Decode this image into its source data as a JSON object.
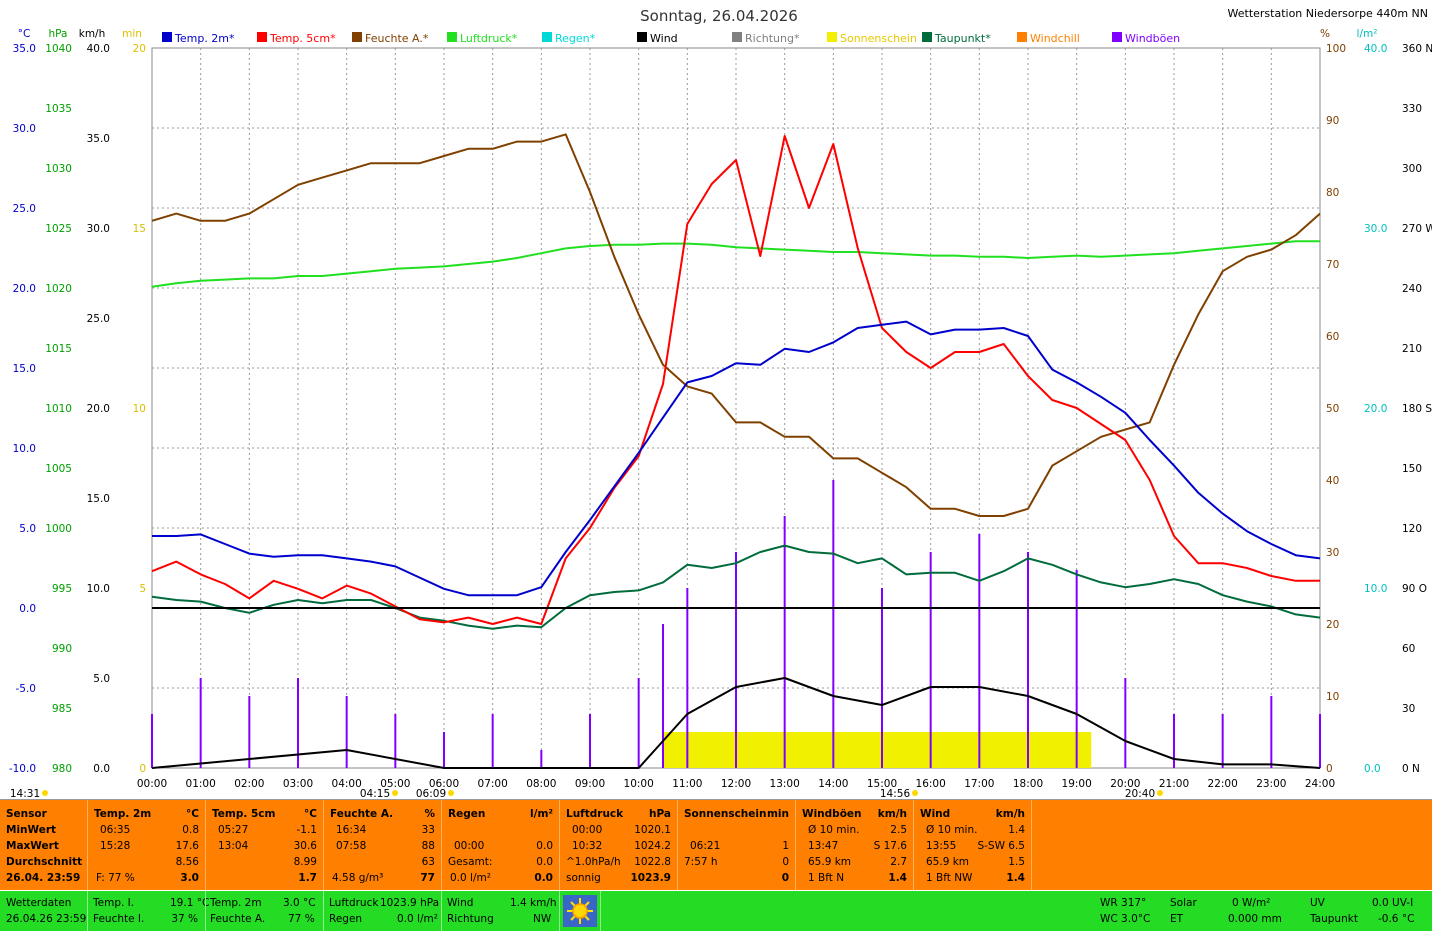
{
  "header": {
    "title": "Sonntag, 26.04.2026",
    "station": "Wetterstation Niedersorpe 440m NN"
  },
  "legend": [
    {
      "label": "Temp. 2m*",
      "color": "#0000cc"
    },
    {
      "label": "Temp. 5cm*",
      "color": "#ff0000"
    },
    {
      "label": "Feuchte A.*",
      "color": "#804000"
    },
    {
      "label": "Luftdruck*",
      "color": "#20e020"
    },
    {
      "label": "Regen*",
      "color": "#00d8d8"
    },
    {
      "label": "Wind",
      "color": "#000000"
    },
    {
      "label": "Richtung*",
      "color": "#808080"
    },
    {
      "label": "Sonnenschein",
      "color": "#f0f000"
    },
    {
      "label": "Taupunkt*",
      "color": "#006c3c"
    },
    {
      "label": "Windchill",
      "color": "#ff8000"
    },
    {
      "label": "Windböen",
      "color": "#8000ff"
    }
  ],
  "axis_units": {
    "temp": "°C",
    "pressure": "hPa",
    "wind": "km/h",
    "sun": "min",
    "humidity": "%",
    "rain": "l/m²"
  },
  "axis_ticks": {
    "temp": [
      "35.0",
      "30.0",
      "25.0",
      "20.0",
      "15.0",
      "10.0",
      "5.0",
      "0.0",
      "-5.0",
      "-10.0"
    ],
    "pressure": [
      "1040",
      "1035",
      "1030",
      "1025",
      "1020",
      "1015",
      "1010",
      "1005",
      "1000",
      "995",
      "990",
      "985",
      "980"
    ],
    "wind": [
      "40.0",
      "35.0",
      "30.0",
      "25.0",
      "20.0",
      "15.0",
      "10.0",
      "5.0",
      "0.0"
    ],
    "sun": [
      "20",
      "15",
      "10",
      "5",
      "0"
    ],
    "humidity": [
      "100",
      "90",
      "80",
      "70",
      "60",
      "50",
      "40",
      "30",
      "20",
      "10",
      "0"
    ],
    "rain": [
      "40.0",
      "30.0",
      "20.0",
      "10.0",
      "0.0"
    ],
    "direction": [
      "360 N",
      "330",
      "300",
      "270 W",
      "240",
      "210",
      "180 S",
      "150",
      "120",
      "90 O",
      "60",
      "30",
      "0 N"
    ]
  },
  "time_labels": [
    "00:00",
    "01:00",
    "02:00",
    "03:00",
    "04:00",
    "05:00",
    "06:00",
    "07:00",
    "08:00",
    "09:00",
    "10:00",
    "11:00",
    "12:00",
    "13:00",
    "14:00",
    "15:00",
    "16:00",
    "17:00",
    "18:00",
    "19:00",
    "20:00",
    "21:00",
    "22:00",
    "23:00",
    "24:00"
  ],
  "sun_events": {
    "moonrise": "14:31",
    "dawn": "04:15",
    "sunrise": "06:09",
    "noon": "14:56",
    "sunset": "20:40"
  },
  "chart_data": {
    "type": "line",
    "title": "Sonntag, 26.04.2026",
    "x_unit": "hours",
    "x_range": [
      0,
      24
    ],
    "ylim_temp": [
      -10,
      35
    ],
    "ylim_pressure": [
      980,
      1040
    ],
    "ylim_wind": [
      0,
      40
    ],
    "ylim_sun": [
      0,
      20
    ],
    "ylim_humidity": [
      0,
      100
    ],
    "ylim_rain": [
      0,
      40
    ],
    "ylim_direction": [
      0,
      360
    ],
    "grid": true,
    "series": [
      {
        "name": "Temp. 2m*",
        "axis": "temp",
        "color": "#0000cc",
        "x": [
          0,
          0.5,
          1,
          1.5,
          2,
          2.5,
          3,
          3.5,
          4,
          4.5,
          5,
          5.5,
          6,
          6.5,
          7,
          7.5,
          8,
          8.5,
          9,
          9.5,
          10,
          10.5,
          11,
          11.5,
          12,
          12.5,
          13,
          13.5,
          14,
          14.5,
          15,
          15.5,
          16,
          16.5,
          17,
          17.5,
          18,
          18.5,
          19,
          19.5,
          20,
          20.5,
          21,
          21.5,
          22,
          22.5,
          23,
          23.5,
          24
        ],
        "y": [
          4.5,
          4.5,
          4.6,
          4.0,
          3.4,
          3.2,
          3.3,
          3.3,
          3.1,
          2.9,
          2.6,
          1.9,
          1.2,
          0.8,
          0.8,
          0.8,
          1.3,
          3.5,
          5.5,
          7.6,
          9.7,
          11.9,
          14.1,
          14.5,
          15.3,
          15.2,
          16.2,
          16.0,
          16.6,
          17.5,
          17.7,
          17.9,
          17.1,
          17.4,
          17.4,
          17.5,
          17.0,
          14.9,
          14.1,
          13.2,
          12.2,
          10.5,
          8.9,
          7.2,
          5.9,
          4.8,
          4.0,
          3.3,
          3.1
        ]
      },
      {
        "name": "Temp. 5cm*",
        "axis": "temp",
        "color": "#ff0000",
        "x": [
          0,
          0.5,
          1,
          1.5,
          2,
          2.5,
          3,
          3.5,
          4,
          4.5,
          5,
          5.5,
          6,
          6.5,
          7,
          7.5,
          8,
          8.5,
          9,
          9.5,
          10,
          10.5,
          11,
          11.5,
          12,
          12.5,
          13,
          13.5,
          14,
          14.5,
          15,
          15.5,
          16,
          16.5,
          17,
          17.5,
          18,
          18.5,
          19,
          19.5,
          20,
          20.5,
          21,
          21.5,
          22,
          22.5,
          23,
          23.5,
          24
        ],
        "y": [
          2.3,
          2.9,
          2.1,
          1.5,
          0.6,
          1.7,
          1.2,
          0.6,
          1.4,
          0.9,
          0.1,
          -0.7,
          -0.9,
          -0.6,
          -1.0,
          -0.6,
          -1.0,
          3.1,
          5.0,
          7.5,
          9.5,
          14.0,
          24.0,
          26.5,
          28.0,
          22.0,
          29.5,
          25.0,
          29.0,
          22.5,
          17.5,
          16.0,
          15.0,
          16.0,
          16.0,
          16.5,
          14.5,
          13.0,
          12.5,
          11.5,
          10.5,
          8.0,
          4.5,
          2.8,
          2.8,
          2.5,
          2.0,
          1.7,
          1.7
        ]
      },
      {
        "name": "Feuchte A.*",
        "axis": "humidity",
        "color": "#804000",
        "x": [
          0,
          0.5,
          1,
          1.5,
          2,
          2.5,
          3,
          3.5,
          4,
          4.5,
          5,
          5.5,
          6,
          6.5,
          7,
          7.5,
          8,
          8.5,
          9,
          9.5,
          10,
          10.5,
          11,
          11.5,
          12,
          12.5,
          13,
          13.5,
          14,
          14.5,
          15,
          15.5,
          16,
          16.5,
          17,
          17.5,
          18,
          18.5,
          19,
          19.5,
          20,
          20.5,
          21,
          21.5,
          22,
          22.5,
          23,
          23.5,
          24
        ],
        "y": [
          76,
          77,
          76,
          76,
          77,
          79,
          81,
          82,
          83,
          84,
          84,
          84,
          85,
          86,
          86,
          87,
          87,
          88,
          80,
          71,
          63,
          56,
          53,
          52,
          48,
          48,
          46,
          46,
          43,
          43,
          41,
          39,
          36,
          36,
          35,
          35,
          36,
          42,
          44,
          46,
          47,
          48,
          56,
          63,
          69,
          71,
          72,
          74,
          77
        ]
      },
      {
        "name": "Luftdruck*",
        "axis": "pressure",
        "color": "#20e020",
        "x": [
          0,
          0.5,
          1,
          1.5,
          2,
          2.5,
          3,
          3.5,
          4,
          4.5,
          5,
          5.5,
          6,
          6.5,
          7,
          7.5,
          8,
          8.5,
          9,
          9.5,
          10,
          10.5,
          11,
          11.5,
          12,
          12.5,
          13,
          13.5,
          14,
          14.5,
          15,
          15.5,
          16,
          16.5,
          17,
          17.5,
          18,
          18.5,
          19,
          19.5,
          20,
          20.5,
          21,
          21.5,
          22,
          22.5,
          23,
          23.5,
          24
        ],
        "y": [
          1020.1,
          1020.4,
          1020.6,
          1020.7,
          1020.8,
          1020.8,
          1021.0,
          1021.0,
          1021.2,
          1021.4,
          1021.6,
          1021.7,
          1021.8,
          1022.0,
          1022.2,
          1022.5,
          1022.9,
          1023.3,
          1023.5,
          1023.6,
          1023.6,
          1023.7,
          1023.7,
          1023.6,
          1023.4,
          1023.3,
          1023.2,
          1023.1,
          1023.0,
          1023.0,
          1022.9,
          1022.8,
          1022.7,
          1022.7,
          1022.6,
          1022.6,
          1022.5,
          1022.6,
          1022.7,
          1022.6,
          1022.7,
          1022.8,
          1022.9,
          1023.1,
          1023.3,
          1023.5,
          1023.7,
          1023.9,
          1023.9
        ]
      },
      {
        "name": "Taupunkt*",
        "axis": "temp",
        "color": "#006c3c",
        "x": [
          0,
          0.5,
          1,
          1.5,
          2,
          2.5,
          3,
          3.5,
          4,
          4.5,
          5,
          5.5,
          6,
          6.5,
          7,
          7.5,
          8,
          8.5,
          9,
          9.5,
          10,
          10.5,
          11,
          11.5,
          12,
          12.5,
          13,
          13.5,
          14,
          14.5,
          15,
          15.5,
          16,
          16.5,
          17,
          17.5,
          18,
          18.5,
          19,
          19.5,
          20,
          20.5,
          21,
          21.5,
          22,
          22.5,
          23,
          23.5,
          24
        ],
        "y": [
          0.7,
          0.5,
          0.4,
          0.0,
          -0.3,
          0.2,
          0.5,
          0.3,
          0.5,
          0.5,
          0.0,
          -0.6,
          -0.8,
          -1.1,
          -1.3,
          -1.1,
          -1.2,
          0.0,
          0.8,
          1.0,
          1.1,
          1.6,
          2.7,
          2.5,
          2.8,
          3.5,
          3.9,
          3.5,
          3.4,
          2.8,
          3.1,
          2.1,
          2.2,
          2.2,
          1.7,
          2.3,
          3.1,
          2.7,
          2.1,
          1.6,
          1.3,
          1.5,
          1.8,
          1.5,
          0.8,
          0.4,
          0.1,
          -0.4,
          -0.6
        ]
      },
      {
        "name": "Wind",
        "axis": "wind",
        "color": "#000000",
        "x": [
          0,
          2,
          4,
          6,
          8,
          9,
          10,
          10.5,
          11,
          12,
          13,
          14,
          15,
          16,
          17,
          18,
          19,
          20,
          21,
          22,
          23,
          24
        ],
        "y": [
          0,
          0.5,
          1.0,
          0,
          0,
          0,
          0,
          1.5,
          3.0,
          4.5,
          5.0,
          4.0,
          3.5,
          4.5,
          4.5,
          4.0,
          3.0,
          1.5,
          0.5,
          0.2,
          0.2,
          0
        ]
      },
      {
        "name": "Windböen",
        "axis": "wind",
        "color": "#8000ff",
        "x": [
          0,
          1,
          2,
          3,
          4,
          5,
          6,
          7,
          8,
          9,
          10,
          10.5,
          11,
          12,
          13,
          14,
          15,
          16,
          17,
          18,
          19,
          20,
          21,
          22,
          23,
          24
        ],
        "y": [
          3,
          5,
          4,
          5,
          4,
          3,
          2,
          3,
          1,
          3,
          5,
          8,
          10,
          12,
          14,
          16,
          10,
          12,
          13,
          12,
          11,
          5,
          3,
          3,
          4,
          3
        ]
      },
      {
        "name": "Sonnenschein",
        "axis": "sun",
        "color": "#f0f000",
        "x": [
          0,
          10.5,
          11,
          12,
          13,
          14,
          15,
          16,
          17,
          18,
          19,
          19.3,
          24
        ],
        "y": [
          0,
          1,
          1,
          1,
          1,
          1,
          1,
          1,
          1,
          1,
          1,
          0,
          0
        ]
      }
    ]
  },
  "stats": {
    "sensor_label": "Sensor",
    "row_labels": [
      "MinWert",
      "MaxWert",
      "Durchschnitt",
      "26.04. 23:59"
    ],
    "temp2m": {
      "title": "Temp. 2m",
      "unit": "°C",
      "min_time": "06:35",
      "min_val": "0.8",
      "max_time": "15:28",
      "max_val": "17.6",
      "avg": "8.56",
      "now_label": "F: 77 %",
      "now_val": "3.0"
    },
    "temp5cm": {
      "title": "Temp. 5cm",
      "unit": "°C",
      "min_time": "05:27",
      "min_val": "-1.1",
      "max_time": "13:04",
      "max_val": "30.6",
      "avg": "8.99",
      "now_val": "1.7"
    },
    "feuchte": {
      "title": "Feuchte A.",
      "unit": "%",
      "min_time": "16:34",
      "min_val": "33",
      "max_time": "07:58",
      "max_val": "88",
      "avg": "63",
      "now_label": "4.58 g/m³",
      "now_val": "77"
    },
    "regen": {
      "title": "Regen",
      "unit": "l/m²",
      "row2_label": "00:00",
      "row2_val": "0.0",
      "row3_label": "Gesamt:",
      "row3_val": "0.0",
      "now_label": "0.0 l/m²",
      "now_val": "0.0"
    },
    "luftdruck": {
      "title": "Luftdruck",
      "unit": "hPa",
      "min_time": "00:00",
      "min_val": "1020.1",
      "max_time": "10:32",
      "max_val": "1024.2",
      "avg_label": "^1.0hPa/h",
      "avg": "1022.8",
      "now_label": "sonnig",
      "now_val": "1023.9"
    },
    "sonne": {
      "title": "Sonnenschein",
      "unit": "min",
      "row2_time": "06:21",
      "row2_val": "1",
      "row3_time": "7:57 h",
      "row3_val": "0",
      "now_val": "0"
    },
    "boeen": {
      "title": "Windböen",
      "unit": "km/h",
      "r1_label": "Ø 10 min.",
      "r1_val": "2.5",
      "r2_time": "13:47",
      "r2_val": "S 17.6",
      "r3_label": "65.9 km",
      "r3_val": "2.7",
      "r4_label": "1 Bft N",
      "r4_val": "1.4"
    },
    "wind": {
      "title": "Wind",
      "unit": "km/h",
      "r1_label": "Ø 10 min.",
      "r1_val": "1.4",
      "r2_time": "13:55",
      "r2_val": "S-SW 6.5",
      "r3_label": "65.9 km",
      "r3_val": "1.5",
      "r4_label": "1 Bft NW",
      "r4_val": "1.4"
    }
  },
  "current": {
    "title": "Wetterdaten",
    "timestamp": "26.04.26 23:59",
    "temp_i_label": "Temp. I.",
    "temp_i": "19.1 °C",
    "feuchte_i_label": "Feuchte I.",
    "feuchte_i": "37 %",
    "temp2m_label": "Temp. 2m",
    "temp2m": "3.0 °C",
    "feuchte_a_label": "Feuchte A.",
    "feuchte_a": "77 %",
    "luftdruck_label": "Luftdruck",
    "luftdruck": "1023.9 hPa",
    "regen_label": "Regen",
    "regen": "0.0 l/m²",
    "wind_label": "Wind",
    "wind": "1.4 km/h",
    "richtung_label": "Richtung",
    "richtung": "NW",
    "wr": "WR 317°",
    "wc": "WC 3.0°C",
    "solar_label": "Solar",
    "solar": "0 W/m²",
    "et_label": "ET",
    "et": "0.000 mm",
    "uv_label": "UV",
    "uv": "0.0 UV-I",
    "taupunkt_label": "Taupunkt",
    "taupunkt": "-0.6 °C"
  }
}
